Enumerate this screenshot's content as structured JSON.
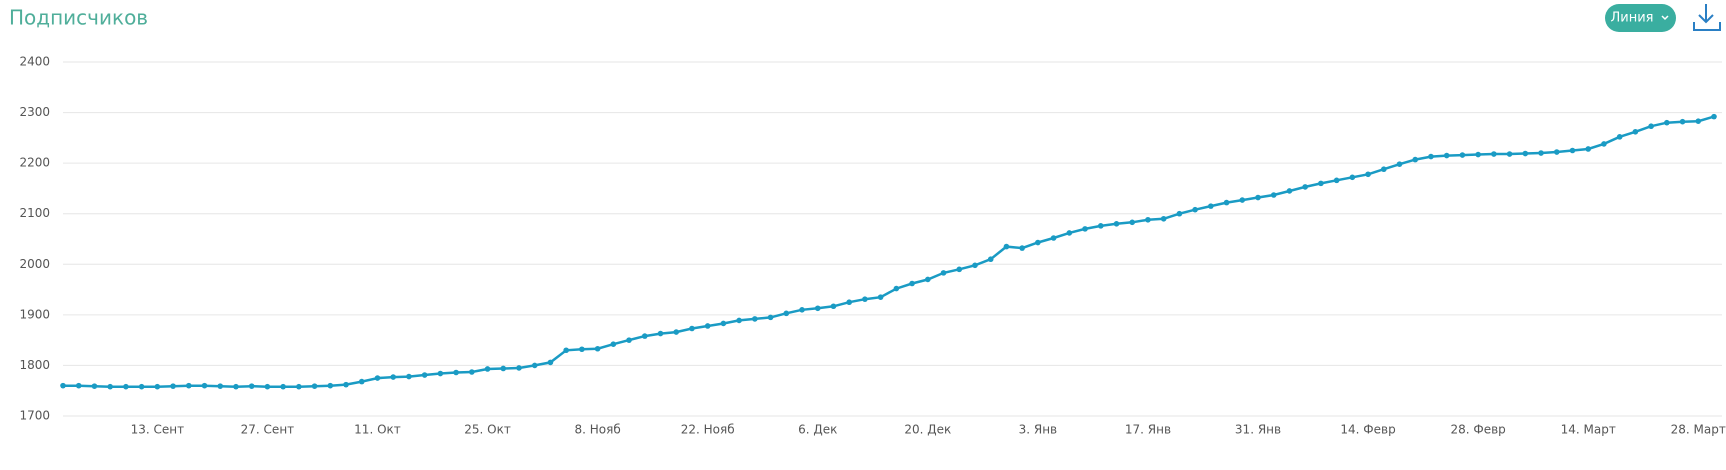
{
  "header": {
    "title": "Подписчиков",
    "button": "Линия"
  },
  "chart_data": {
    "type": "line",
    "categories": [
      null,
      null,
      null,
      null,
      null,
      null,
      "13. Сент",
      null,
      null,
      null,
      null,
      null,
      null,
      "27. Сент",
      null,
      null,
      null,
      null,
      null,
      null,
      "11. Окт",
      null,
      null,
      null,
      null,
      null,
      null,
      "25. Окт",
      null,
      null,
      null,
      null,
      null,
      null,
      "8. Нояб",
      null,
      null,
      null,
      null,
      null,
      null,
      "22. Нояб",
      null,
      null,
      null,
      null,
      null,
      null,
      "6. Дек",
      null,
      null,
      null,
      null,
      null,
      null,
      "20. Дек",
      null,
      null,
      null,
      null,
      null,
      null,
      "3. Янв",
      null,
      null,
      null,
      null,
      null,
      null,
      "17. Янв",
      null,
      null,
      null,
      null,
      null,
      null,
      "31. Янв",
      null,
      null,
      null,
      null,
      null,
      null,
      "14. Февр",
      null,
      null,
      null,
      null,
      null,
      null,
      "28. Февр",
      null,
      null,
      null,
      null,
      null,
      null,
      "14. Март",
      null,
      null,
      null,
      null,
      null,
      null,
      "28. Март",
      null
    ],
    "values": [
      1760,
      1760,
      1759,
      1758,
      1758,
      1758,
      1758,
      1759,
      1760,
      1760,
      1759,
      1758,
      1759,
      1758,
      1758,
      1758,
      1759,
      1760,
      1762,
      1768,
      1775,
      1777,
      1778,
      1781,
      1784,
      1786,
      1787,
      1793,
      1794,
      1795,
      1800,
      1806,
      1830,
      1832,
      1833,
      1842,
      1850,
      1858,
      1863,
      1866,
      1873,
      1878,
      1883,
      1889,
      1892,
      1895,
      1903,
      1910,
      1913,
      1917,
      1925,
      1931,
      1935,
      1952,
      1962,
      1970,
      1983,
      1990,
      1998,
      2010,
      2035,
      2032,
      2043,
      2052,
      2062,
      2070,
      2076,
      2080,
      2083,
      2088,
      2090,
      2100,
      2108,
      2115,
      2122,
      2127,
      2132,
      2137,
      2145,
      2153,
      2160,
      2166,
      2172,
      2178,
      2188,
      2198,
      2207,
      2213,
      2215,
      2216,
      2217,
      2218,
      2218,
      2219,
      2220,
      2222,
      2225,
      2228,
      2238,
      2252,
      2262,
      2273,
      2280,
      2282,
      2283,
      2292
    ],
    "color": "#1a9bc4",
    "ylim": [
      1700,
      2400
    ],
    "yticks": [
      1700,
      1800,
      1900,
      2000,
      2100,
      2200,
      2300,
      2400
    ],
    "grid": true
  }
}
